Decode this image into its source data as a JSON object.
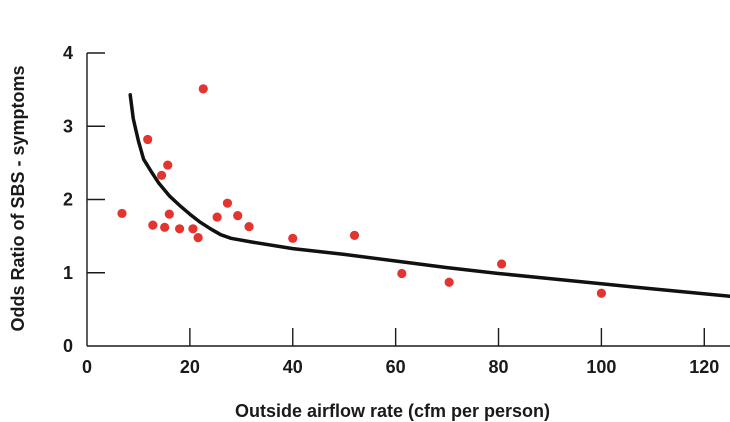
{
  "chart_data": {
    "type": "scatter",
    "title": "",
    "xlabel": "Outside airflow rate (cfm per person)",
    "ylabel": "Odds Ratio of SBS - symptoms",
    "xlim": [
      0,
      125
    ],
    "ylim": [
      0,
      4
    ],
    "xticks": [
      0,
      20,
      40,
      60,
      80,
      100,
      120
    ],
    "yticks": [
      0,
      1,
      2,
      3,
      4
    ],
    "grid": false,
    "legend": "none",
    "point_color": "#e3342f",
    "line_color": "#111111",
    "series": [
      {
        "kind": "points",
        "points": [
          {
            "x": 6.8,
            "y": 1.81
          },
          {
            "x": 11.8,
            "y": 2.82
          },
          {
            "x": 12.8,
            "y": 1.65
          },
          {
            "x": 14.5,
            "y": 2.33
          },
          {
            "x": 15.1,
            "y": 1.62
          },
          {
            "x": 15.7,
            "y": 2.47
          },
          {
            "x": 16.0,
            "y": 1.8
          },
          {
            "x": 18.0,
            "y": 1.6
          },
          {
            "x": 20.6,
            "y": 1.6
          },
          {
            "x": 21.6,
            "y": 1.48
          },
          {
            "x": 22.6,
            "y": 3.51
          },
          {
            "x": 25.3,
            "y": 1.76
          },
          {
            "x": 27.3,
            "y": 1.95
          },
          {
            "x": 29.3,
            "y": 1.78
          },
          {
            "x": 31.5,
            "y": 1.63
          },
          {
            "x": 40.0,
            "y": 1.47
          },
          {
            "x": 52.0,
            "y": 1.51
          },
          {
            "x": 61.2,
            "y": 0.99
          },
          {
            "x": 70.4,
            "y": 0.87
          },
          {
            "x": 80.6,
            "y": 1.12
          },
          {
            "x": 100.0,
            "y": 0.72
          }
        ]
      },
      {
        "kind": "line",
        "points": [
          {
            "x": 8.4,
            "y": 3.43
          },
          {
            "x": 9.0,
            "y": 3.1
          },
          {
            "x": 10.0,
            "y": 2.8
          },
          {
            "x": 11.0,
            "y": 2.55
          },
          {
            "x": 12.5,
            "y": 2.38
          },
          {
            "x": 14.0,
            "y": 2.22
          },
          {
            "x": 16.0,
            "y": 2.05
          },
          {
            "x": 18.0,
            "y": 1.92
          },
          {
            "x": 20.0,
            "y": 1.8
          },
          {
            "x": 22.0,
            "y": 1.69
          },
          {
            "x": 24.0,
            "y": 1.6
          },
          {
            "x": 26.0,
            "y": 1.52
          },
          {
            "x": 28.0,
            "y": 1.47
          },
          {
            "x": 32.0,
            "y": 1.42
          },
          {
            "x": 40.0,
            "y": 1.33
          },
          {
            "x": 50.0,
            "y": 1.25
          },
          {
            "x": 60.0,
            "y": 1.16
          },
          {
            "x": 70.0,
            "y": 1.07
          },
          {
            "x": 80.0,
            "y": 0.99
          },
          {
            "x": 90.0,
            "y": 0.92
          },
          {
            "x": 100.0,
            "y": 0.85
          },
          {
            "x": 110.0,
            "y": 0.78
          },
          {
            "x": 125.0,
            "y": 0.68
          }
        ]
      }
    ]
  }
}
